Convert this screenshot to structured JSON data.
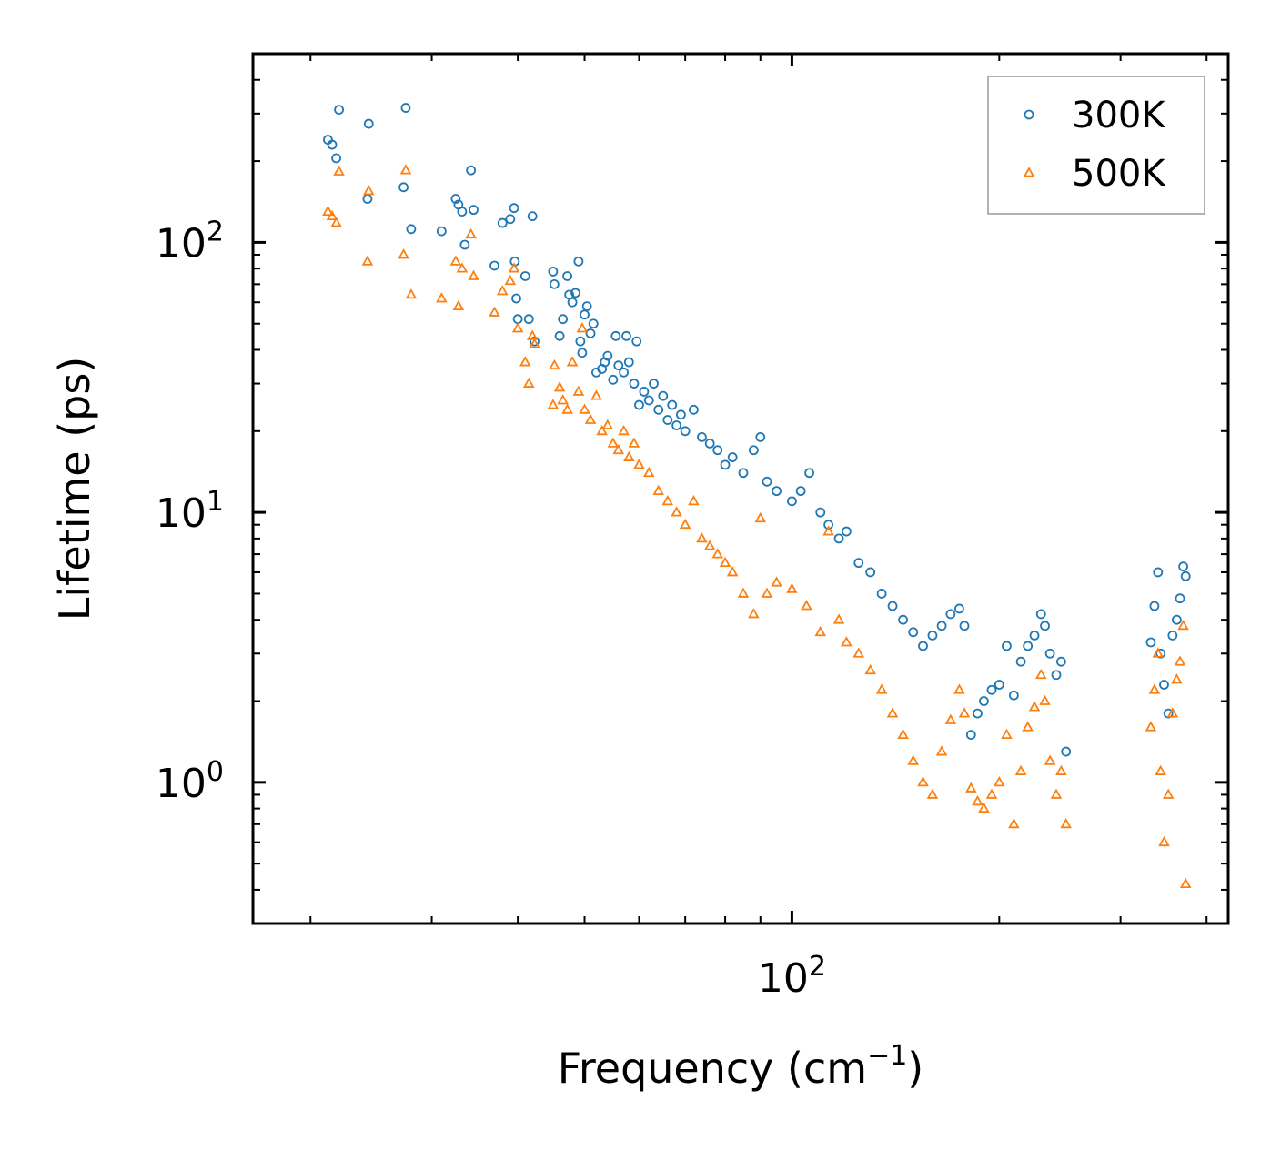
{
  "chart_data": {
    "type": "scatter",
    "xscale": "log",
    "yscale": "log",
    "xlabel": "Frequency (cm",
    "xlabel_sup": "−1",
    "xlabel_end": ")",
    "ylabel": "Lifetime (ps)",
    "xlim": [
      16.5,
      430
    ],
    "ylim": [
      0.3,
      500
    ],
    "x_major_ticks": [
      {
        "value": 100,
        "base": "10",
        "exp": "2"
      }
    ],
    "y_major_ticks": [
      {
        "value": 1,
        "base": "10",
        "exp": "0"
      },
      {
        "value": 10,
        "base": "10",
        "exp": "1"
      },
      {
        "value": 100,
        "base": "10",
        "exp": "2"
      }
    ],
    "legend_position": "top-right",
    "series": [
      {
        "name": "300K",
        "marker": "circle",
        "color": "#1f77b4",
        "points": [
          [
            21.2,
            240
          ],
          [
            21.5,
            230
          ],
          [
            21.8,
            205
          ],
          [
            22.0,
            310
          ],
          [
            24.2,
            145
          ],
          [
            24.3,
            275
          ],
          [
            27.3,
            160
          ],
          [
            27.5,
            315
          ],
          [
            28.0,
            112
          ],
          [
            31.0,
            110
          ],
          [
            32.5,
            145
          ],
          [
            32.8,
            138
          ],
          [
            33.2,
            130
          ],
          [
            33.5,
            98
          ],
          [
            34.2,
            185
          ],
          [
            34.5,
            132
          ],
          [
            37.0,
            82
          ],
          [
            38.0,
            118
          ],
          [
            39.0,
            122
          ],
          [
            39.5,
            134
          ],
          [
            39.6,
            85
          ],
          [
            39.8,
            62
          ],
          [
            40.0,
            52
          ],
          [
            41.0,
            75
          ],
          [
            41.5,
            52
          ],
          [
            42.0,
            125
          ],
          [
            42.3,
            43
          ],
          [
            45.0,
            78
          ],
          [
            45.2,
            70
          ],
          [
            46.0,
            45
          ],
          [
            46.5,
            52
          ],
          [
            47.2,
            75
          ],
          [
            47.5,
            64
          ],
          [
            48.0,
            60
          ],
          [
            48.5,
            65
          ],
          [
            49.0,
            85
          ],
          [
            49.3,
            43
          ],
          [
            49.6,
            39
          ],
          [
            50.0,
            54
          ],
          [
            50.4,
            58
          ],
          [
            51.0,
            46
          ],
          [
            51.5,
            50
          ],
          [
            52.0,
            33
          ],
          [
            53.0,
            34
          ],
          [
            53.5,
            36
          ],
          [
            54.0,
            38
          ],
          [
            55.0,
            31
          ],
          [
            55.5,
            45
          ],
          [
            56.0,
            35
          ],
          [
            57.0,
            33
          ],
          [
            57.5,
            45
          ],
          [
            58.0,
            36
          ],
          [
            59.0,
            30
          ],
          [
            59.5,
            43
          ],
          [
            60.0,
            25
          ],
          [
            61.0,
            28
          ],
          [
            62.0,
            26
          ],
          [
            63.0,
            30
          ],
          [
            64.0,
            24
          ],
          [
            65.0,
            27
          ],
          [
            66.0,
            22
          ],
          [
            67.0,
            25
          ],
          [
            68.0,
            21
          ],
          [
            69.0,
            23
          ],
          [
            70.0,
            20
          ],
          [
            72.0,
            24
          ],
          [
            74.0,
            19
          ],
          [
            76.0,
            18
          ],
          [
            78.0,
            17
          ],
          [
            80.0,
            15
          ],
          [
            82.0,
            16
          ],
          [
            85.0,
            14
          ],
          [
            88.0,
            17
          ],
          [
            90.0,
            19
          ],
          [
            92.0,
            13
          ],
          [
            95.0,
            12
          ],
          [
            100.0,
            11
          ],
          [
            103.0,
            12
          ],
          [
            106.0,
            14
          ],
          [
            110.0,
            10
          ],
          [
            113.0,
            9
          ],
          [
            117.0,
            8
          ],
          [
            120.0,
            8.5
          ],
          [
            125.0,
            6.5
          ],
          [
            130.0,
            6
          ],
          [
            135.0,
            5
          ],
          [
            140.0,
            4.5
          ],
          [
            145.0,
            4
          ],
          [
            150.0,
            3.6
          ],
          [
            155.0,
            3.2
          ],
          [
            160.0,
            3.5
          ],
          [
            165.0,
            3.8
          ],
          [
            170.0,
            4.2
          ],
          [
            175.0,
            4.4
          ],
          [
            178.0,
            3.8
          ],
          [
            182.0,
            1.5
          ],
          [
            186.0,
            1.8
          ],
          [
            190.0,
            2.0
          ],
          [
            195.0,
            2.2
          ],
          [
            200.0,
            2.3
          ],
          [
            205.0,
            3.2
          ],
          [
            210.0,
            2.1
          ],
          [
            215.0,
            2.8
          ],
          [
            220.0,
            3.2
          ],
          [
            225.0,
            3.5
          ],
          [
            230.0,
            4.2
          ],
          [
            233.0,
            3.8
          ],
          [
            237.0,
            3.0
          ],
          [
            242.0,
            2.5
          ],
          [
            246.0,
            2.8
          ],
          [
            250.0,
            1.3
          ],
          [
            332.0,
            3.3
          ],
          [
            336.0,
            4.5
          ],
          [
            340.0,
            6.0
          ],
          [
            343.0,
            3.0
          ],
          [
            347.0,
            2.3
          ],
          [
            352.0,
            1.8
          ],
          [
            357.0,
            3.5
          ],
          [
            362.0,
            4.0
          ],
          [
            366.0,
            4.8
          ],
          [
            370.0,
            6.3
          ],
          [
            373.0,
            5.8
          ]
        ]
      },
      {
        "name": "500K",
        "marker": "triangle",
        "color": "#ff7f0e",
        "points": [
          [
            21.2,
            130
          ],
          [
            21.5,
            125
          ],
          [
            21.8,
            118
          ],
          [
            22.0,
            183
          ],
          [
            24.2,
            85
          ],
          [
            24.3,
            155
          ],
          [
            27.3,
            90
          ],
          [
            27.5,
            185
          ],
          [
            28.0,
            64
          ],
          [
            31.0,
            62
          ],
          [
            32.5,
            85
          ],
          [
            32.8,
            58
          ],
          [
            33.2,
            80
          ],
          [
            34.2,
            107
          ],
          [
            34.5,
            75
          ],
          [
            37.0,
            55
          ],
          [
            38.0,
            66
          ],
          [
            39.0,
            72
          ],
          [
            39.5,
            80
          ],
          [
            40.0,
            48
          ],
          [
            41.0,
            36
          ],
          [
            41.5,
            30
          ],
          [
            42.0,
            45
          ],
          [
            42.3,
            42
          ],
          [
            45.0,
            25
          ],
          [
            45.2,
            35
          ],
          [
            46.0,
            29
          ],
          [
            46.5,
            26
          ],
          [
            47.2,
            24
          ],
          [
            48.0,
            36
          ],
          [
            49.0,
            28
          ],
          [
            49.6,
            48
          ],
          [
            50.0,
            24
          ],
          [
            51.0,
            22
          ],
          [
            52.0,
            27
          ],
          [
            53.0,
            20
          ],
          [
            54.0,
            21
          ],
          [
            55.0,
            18
          ],
          [
            56.0,
            17
          ],
          [
            57.0,
            20
          ],
          [
            58.0,
            16
          ],
          [
            59.0,
            18
          ],
          [
            60.0,
            15
          ],
          [
            62.0,
            14
          ],
          [
            64.0,
            12
          ],
          [
            66.0,
            11
          ],
          [
            68.0,
            10
          ],
          [
            70.0,
            9
          ],
          [
            72.0,
            11
          ],
          [
            74.0,
            8
          ],
          [
            76.0,
            7.5
          ],
          [
            78.0,
            7
          ],
          [
            80.0,
            6.5
          ],
          [
            82.0,
            6
          ],
          [
            85.0,
            5
          ],
          [
            88.0,
            4.2
          ],
          [
            90.0,
            9.5
          ],
          [
            92.0,
            5
          ],
          [
            95.0,
            5.5
          ],
          [
            100.0,
            5.2
          ],
          [
            105.0,
            4.5
          ],
          [
            110.0,
            3.6
          ],
          [
            113.0,
            8.5
          ],
          [
            117.0,
            4
          ],
          [
            120.0,
            3.3
          ],
          [
            125.0,
            3.0
          ],
          [
            130.0,
            2.6
          ],
          [
            135.0,
            2.2
          ],
          [
            140.0,
            1.8
          ],
          [
            145.0,
            1.5
          ],
          [
            150.0,
            1.2
          ],
          [
            155.0,
            1.0
          ],
          [
            160.0,
            0.9
          ],
          [
            165.0,
            1.3
          ],
          [
            170.0,
            1.7
          ],
          [
            175.0,
            2.2
          ],
          [
            178.0,
            1.8
          ],
          [
            182.0,
            0.95
          ],
          [
            186.0,
            0.85
          ],
          [
            190.0,
            0.8
          ],
          [
            195.0,
            0.9
          ],
          [
            200.0,
            1.0
          ],
          [
            205.0,
            1.5
          ],
          [
            210.0,
            0.7
          ],
          [
            215.0,
            1.1
          ],
          [
            220.0,
            1.6
          ],
          [
            225.0,
            1.9
          ],
          [
            230.0,
            2.5
          ],
          [
            233.0,
            2.0
          ],
          [
            237.0,
            1.2
          ],
          [
            242.0,
            0.9
          ],
          [
            246.0,
            1.1
          ],
          [
            250.0,
            0.7
          ],
          [
            332.0,
            1.6
          ],
          [
            336.0,
            2.2
          ],
          [
            340.0,
            3.0
          ],
          [
            343.0,
            1.1
          ],
          [
            347.0,
            0.6
          ],
          [
            352.0,
            0.9
          ],
          [
            357.0,
            1.8
          ],
          [
            362.0,
            2.4
          ],
          [
            366.0,
            2.8
          ],
          [
            370.0,
            3.8
          ],
          [
            373.0,
            0.42
          ]
        ]
      }
    ]
  }
}
